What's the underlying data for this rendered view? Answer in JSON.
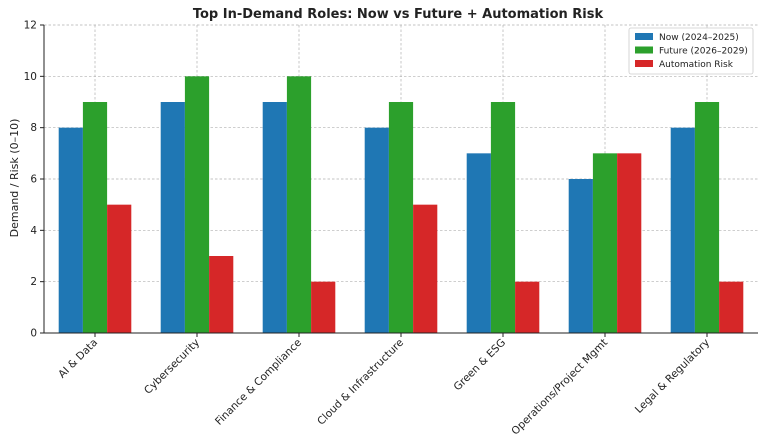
{
  "chart_data": {
    "type": "bar",
    "title": "Top In-Demand Roles: Now vs Future + Automation Risk",
    "xlabel": "",
    "ylabel": "Demand / Risk (0–10)",
    "ylim": [
      0,
      12
    ],
    "yticks": [
      0,
      2,
      4,
      6,
      8,
      10,
      12
    ],
    "grid": true,
    "legend_position": "top-right",
    "categories": [
      "AI & Data",
      "Cybersecurity",
      "Finance & Compliance",
      "Cloud & Infrastructure",
      "Green & ESG",
      "Operations/Project Mgmt",
      "Legal & Regulatory"
    ],
    "series": [
      {
        "name": "Now (2024–2025)",
        "color": "#1f77b4",
        "values": [
          8,
          9,
          9,
          8,
          7,
          6,
          8
        ]
      },
      {
        "name": "Future (2026–2029)",
        "color": "#2ca02c",
        "values": [
          9,
          10,
          10,
          9,
          9,
          7,
          9
        ]
      },
      {
        "name": "Automation Risk",
        "color": "#d62728",
        "values": [
          5,
          3,
          2,
          5,
          2,
          7,
          2
        ]
      }
    ]
  }
}
